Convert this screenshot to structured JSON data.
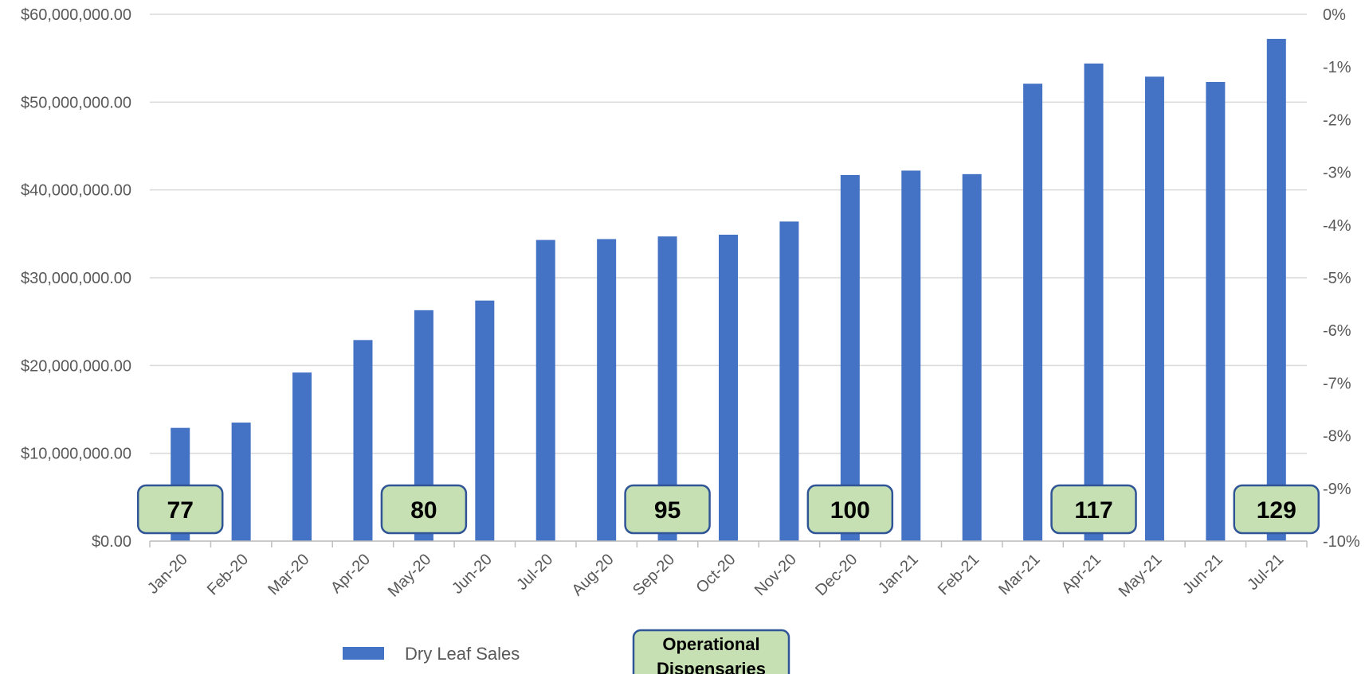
{
  "chart_data": {
    "type": "bar",
    "categories": [
      "Jan-20",
      "Feb-20",
      "Mar-20",
      "Apr-20",
      "May-20",
      "Jun-20",
      "Jul-20",
      "Aug-20",
      "Sep-20",
      "Oct-20",
      "Nov-20",
      "Dec-20",
      "Jan-21",
      "Feb-21",
      "Mar-21",
      "Apr-21",
      "May-21",
      "Jun-21",
      "Jul-21"
    ],
    "series": [
      {
        "name": "Dry Leaf Sales",
        "color": "#4472C4",
        "values": [
          12900000,
          13500000,
          19200000,
          22900000,
          26300000,
          27400000,
          34300000,
          34400000,
          34700000,
          34900000,
          36400000,
          41700000,
          42200000,
          41800000,
          52100000,
          54400000,
          52900000,
          52300000,
          57200000
        ]
      }
    ],
    "ylim": [
      0,
      60000000
    ],
    "y_ticks": [
      "$0.00",
      "$10,000,000.00",
      "$20,000,000.00",
      "$30,000,000.00",
      "$40,000,000.00",
      "$50,000,000.00",
      "$60,000,000.00"
    ],
    "y2lim": [
      -10,
      0
    ],
    "y2_ticks": [
      "-10%",
      "-9%",
      "-8%",
      "-7%",
      "-6%",
      "-5%",
      "-4%",
      "-3%",
      "-2%",
      "-1%",
      "0%"
    ],
    "grid": true,
    "legend_placement": "bottom",
    "annotations": {
      "name": "Operational Dispensaries",
      "label_lines": [
        "Operational",
        "Dispensaries"
      ],
      "fill_color": "#C6E0B4",
      "border_color": "#2F5597",
      "items": [
        {
          "category": "Jan-20",
          "value": "77"
        },
        {
          "category": "May-20",
          "value": "80"
        },
        {
          "category": "Sep-20",
          "value": "95"
        },
        {
          "category": "Dec-20",
          "value": "100"
        },
        {
          "category": "Apr-21",
          "value": "117"
        },
        {
          "category": "Jul-21",
          "value": "129"
        }
      ]
    }
  }
}
